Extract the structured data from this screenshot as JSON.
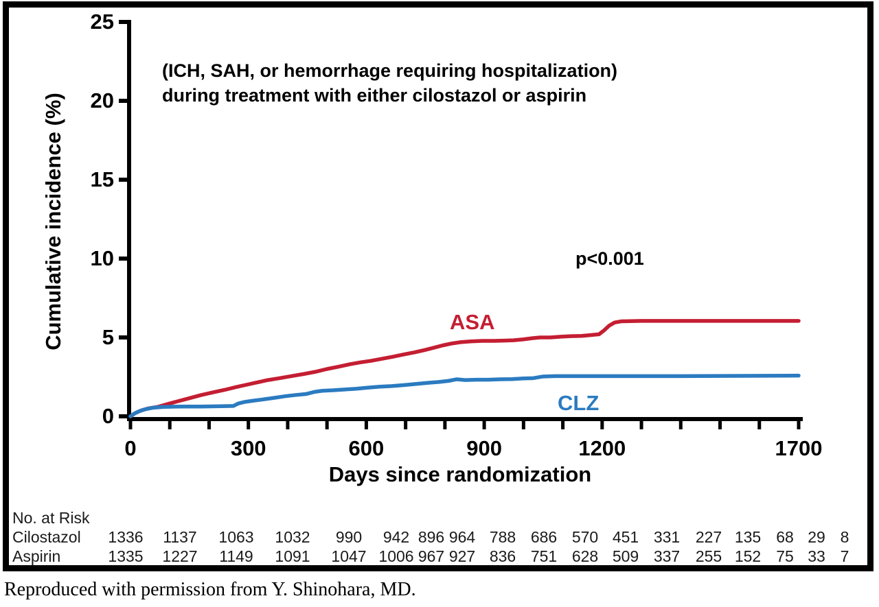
{
  "figure": {
    "annotation_line1": "(ICH, SAH, or hemorrhage requiring hospitalization)",
    "annotation_line2": "during treatment with either cilostazol or aspirin",
    "p_value": "p<0.001",
    "caption": "Reproduced with permission from Y. Shinohara, MD."
  },
  "chart_data": {
    "type": "line",
    "title": "(ICH, SAH, or hemorrhage requiring hospitalization) during treatment with either cilostazol or aspirin",
    "xlabel": "Days since randomization",
    "ylabel": "Cumulative incidence (%)",
    "xlim": [
      0,
      1700
    ],
    "ylim": [
      0,
      25
    ],
    "grid": false,
    "x_tick_interval": 100,
    "x_major_tick_labels": [
      "0",
      "300",
      "600",
      "900",
      "1200",
      "1700"
    ],
    "x_major_tick_values": [
      0,
      300,
      600,
      900,
      1200,
      1700
    ],
    "y_ticks": [
      "0",
      "5",
      "10",
      "15",
      "20",
      "25"
    ],
    "y_tick_values": [
      0,
      5,
      10,
      15,
      20,
      25
    ],
    "annotations": [
      "p<0.001"
    ],
    "series": [
      {
        "name": "ASA",
        "color": "#C41E32",
        "points": [
          [
            0,
            0
          ],
          [
            12,
            0.2
          ],
          [
            28,
            0.38
          ],
          [
            45,
            0.5
          ],
          [
            70,
            0.6
          ],
          [
            95,
            0.78
          ],
          [
            120,
            0.95
          ],
          [
            150,
            1.15
          ],
          [
            180,
            1.35
          ],
          [
            210,
            1.52
          ],
          [
            240,
            1.68
          ],
          [
            268,
            1.85
          ],
          [
            295,
            2.0
          ],
          [
            322,
            2.15
          ],
          [
            350,
            2.3
          ],
          [
            380,
            2.42
          ],
          [
            410,
            2.55
          ],
          [
            440,
            2.68
          ],
          [
            470,
            2.82
          ],
          [
            500,
            3.0
          ],
          [
            530,
            3.15
          ],
          [
            558,
            3.3
          ],
          [
            585,
            3.42
          ],
          [
            612,
            3.52
          ],
          [
            640,
            3.65
          ],
          [
            668,
            3.78
          ],
          [
            695,
            3.92
          ],
          [
            722,
            4.05
          ],
          [
            748,
            4.2
          ],
          [
            772,
            4.35
          ],
          [
            795,
            4.5
          ],
          [
            818,
            4.62
          ],
          [
            840,
            4.7
          ],
          [
            865,
            4.75
          ],
          [
            895,
            4.78
          ],
          [
            925,
            4.78
          ],
          [
            950,
            4.8
          ],
          [
            975,
            4.82
          ],
          [
            1000,
            4.88
          ],
          [
            1022,
            4.95
          ],
          [
            1042,
            5.0
          ],
          [
            1068,
            5.0
          ],
          [
            1095,
            5.05
          ],
          [
            1120,
            5.08
          ],
          [
            1148,
            5.1
          ],
          [
            1172,
            5.15
          ],
          [
            1192,
            5.2
          ],
          [
            1205,
            5.45
          ],
          [
            1218,
            5.75
          ],
          [
            1232,
            5.95
          ],
          [
            1248,
            6.02
          ],
          [
            1300,
            6.05
          ],
          [
            1700,
            6.05
          ]
        ]
      },
      {
        "name": "CLZ",
        "color": "#2B7BC0",
        "points": [
          [
            0,
            0
          ],
          [
            10,
            0.18
          ],
          [
            22,
            0.32
          ],
          [
            38,
            0.45
          ],
          [
            58,
            0.55
          ],
          [
            85,
            0.6
          ],
          [
            130,
            0.62
          ],
          [
            180,
            0.62
          ],
          [
            230,
            0.64
          ],
          [
            262,
            0.66
          ],
          [
            275,
            0.82
          ],
          [
            292,
            0.92
          ],
          [
            315,
            1.0
          ],
          [
            340,
            1.08
          ],
          [
            368,
            1.18
          ],
          [
            395,
            1.28
          ],
          [
            420,
            1.35
          ],
          [
            448,
            1.42
          ],
          [
            468,
            1.55
          ],
          [
            488,
            1.62
          ],
          [
            515,
            1.65
          ],
          [
            545,
            1.7
          ],
          [
            575,
            1.75
          ],
          [
            605,
            1.82
          ],
          [
            635,
            1.88
          ],
          [
            665,
            1.92
          ],
          [
            695,
            1.98
          ],
          [
            725,
            2.05
          ],
          [
            755,
            2.12
          ],
          [
            785,
            2.18
          ],
          [
            810,
            2.25
          ],
          [
            830,
            2.35
          ],
          [
            852,
            2.3
          ],
          [
            880,
            2.32
          ],
          [
            910,
            2.32
          ],
          [
            940,
            2.35
          ],
          [
            970,
            2.36
          ],
          [
            1000,
            2.4
          ],
          [
            1025,
            2.42
          ],
          [
            1048,
            2.52
          ],
          [
            1080,
            2.55
          ],
          [
            1400,
            2.55
          ],
          [
            1700,
            2.58
          ]
        ]
      }
    ]
  },
  "at_risk": {
    "title": "No. at Risk",
    "rows": [
      {
        "label": "Cilostazol",
        "values": [
          "1336",
          "1137",
          "1063",
          "1032",
          "990",
          "942",
          "896",
          "964",
          "788",
          "686",
          "570",
          "451",
          "331",
          "227",
          "135",
          "68",
          "29",
          "8"
        ]
      },
      {
        "label": "Aspirin",
        "values": [
          "1335",
          "1227",
          "1149",
          "1091",
          "1047",
          "1006",
          "967",
          "927",
          "836",
          "751",
          "628",
          "509",
          "337",
          "255",
          "152",
          "75",
          "33",
          "7"
        ]
      }
    ]
  }
}
